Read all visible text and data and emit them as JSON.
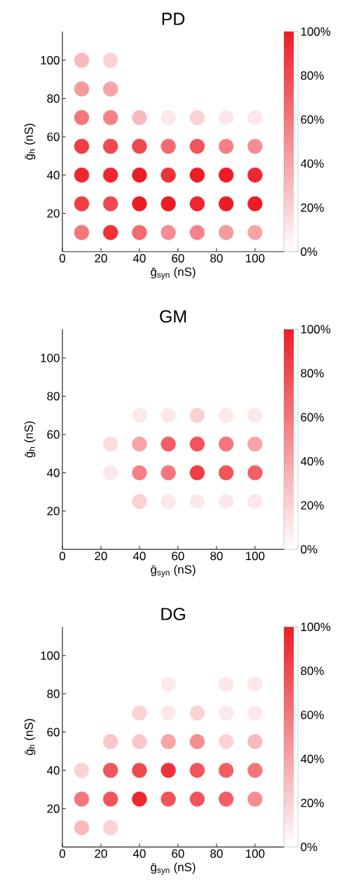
{
  "chart_data": [
    {
      "type": "scatter",
      "title": "PD",
      "xlabel": "ḡ$_{syn}$ (nS)",
      "ylabel": "ḡ$_{h}$ (nS)",
      "marker": "circle",
      "x": [
        10,
        25,
        10,
        25,
        10,
        25,
        40,
        55,
        70,
        85,
        100,
        10,
        25,
        40,
        55,
        70,
        85,
        100,
        10,
        25,
        40,
        55,
        70,
        85,
        100,
        10,
        25,
        40,
        55,
        70,
        85,
        100,
        10,
        25,
        40,
        55,
        70,
        85,
        100
      ],
      "values": [
        100,
        100,
        85,
        85,
        70,
        70,
        70,
        70,
        70,
        70,
        70,
        55,
        55,
        55,
        55,
        55,
        55,
        55,
        40,
        40,
        40,
        40,
        40,
        40,
        40,
        25,
        25,
        25,
        25,
        25,
        25,
        25,
        10,
        10,
        10,
        10,
        10,
        10,
        10
      ],
      "cvalues": [
        30,
        20,
        45,
        40,
        60,
        55,
        30,
        10,
        20,
        10,
        10,
        85,
        80,
        80,
        65,
        75,
        55,
        50,
        95,
        95,
        100,
        90,
        100,
        100,
        95,
        85,
        80,
        100,
        100,
        95,
        100,
        100,
        60,
        90,
        65,
        50,
        55,
        45,
        40
      ],
      "xlim": [
        0,
        115
      ],
      "ylim": [
        0,
        115
      ],
      "xticks": [
        0,
        20,
        40,
        60,
        80,
        100
      ],
      "yticks": [
        20,
        40,
        60,
        80,
        100
      ],
      "clim": [
        0,
        100
      ],
      "cticks": [
        {
          "value": 0,
          "label": "0%"
        },
        {
          "value": 20,
          "label": "20%"
        },
        {
          "value": 40,
          "label": "40%"
        },
        {
          "value": 60,
          "label": "60%"
        },
        {
          "value": 80,
          "label": "80%"
        },
        {
          "value": 100,
          "label": "100%"
        }
      ]
    },
    {
      "type": "scatter",
      "title": "GM",
      "xlabel": "ḡ$_{syn}$ (nS)",
      "ylabel": "ḡ$_{h}$ (nS)",
      "marker": "circle",
      "x": [
        40,
        55,
        70,
        85,
        100,
        25,
        40,
        55,
        70,
        85,
        100,
        25,
        40,
        55,
        70,
        85,
        100,
        40,
        55,
        70,
        85,
        100
      ],
      "values": [
        70,
        70,
        70,
        70,
        70,
        55,
        55,
        55,
        55,
        55,
        55,
        40,
        40,
        40,
        40,
        40,
        40,
        25,
        25,
        25,
        25,
        25
      ],
      "cvalues": [
        10,
        10,
        20,
        10,
        10,
        15,
        40,
        70,
        75,
        60,
        40,
        10,
        55,
        60,
        85,
        75,
        70,
        20,
        10,
        10,
        10,
        10
      ],
      "xlim": [
        0,
        115
      ],
      "ylim": [
        0,
        115
      ],
      "xticks": [
        0,
        20,
        40,
        60,
        80,
        100
      ],
      "yticks": [
        20,
        40,
        60,
        80,
        100
      ],
      "clim": [
        0,
        100
      ],
      "cticks": [
        {
          "value": 0,
          "label": "0%"
        },
        {
          "value": 20,
          "label": "20%"
        },
        {
          "value": 40,
          "label": "40%"
        },
        {
          "value": 60,
          "label": "60%"
        },
        {
          "value": 80,
          "label": "80%"
        },
        {
          "value": 100,
          "label": "100%"
        }
      ]
    },
    {
      "type": "scatter",
      "title": "DG",
      "xlabel": "ḡ$_{syn}$ (nS)",
      "ylabel": "ḡ$_{h}$ (nS)",
      "marker": "circle",
      "x": [
        55,
        85,
        100,
        40,
        55,
        70,
        85,
        100,
        25,
        40,
        55,
        70,
        85,
        100,
        10,
        25,
        40,
        55,
        70,
        85,
        100,
        10,
        25,
        40,
        55,
        70,
        85,
        100,
        10,
        25
      ],
      "values": [
        85,
        85,
        85,
        70,
        70,
        70,
        70,
        70,
        55,
        55,
        55,
        55,
        55,
        55,
        40,
        40,
        40,
        40,
        40,
        40,
        40,
        25,
        25,
        25,
        25,
        25,
        25,
        25,
        10,
        10
      ],
      "cvalues": [
        10,
        10,
        10,
        20,
        10,
        20,
        10,
        10,
        25,
        25,
        40,
        50,
        20,
        30,
        20,
        75,
        80,
        90,
        75,
        70,
        60,
        60,
        75,
        95,
        75,
        75,
        70,
        50,
        30,
        20
      ],
      "xlim": [
        0,
        115
      ],
      "ylim": [
        0,
        115
      ],
      "xticks": [
        0,
        20,
        40,
        60,
        80,
        100
      ],
      "yticks": [
        20,
        40,
        60,
        80,
        100
      ],
      "clim": [
        0,
        100
      ],
      "cticks": [
        {
          "value": 0,
          "label": "0%"
        },
        {
          "value": 20,
          "label": "20%"
        },
        {
          "value": 40,
          "label": "40%"
        },
        {
          "value": 60,
          "label": "60%"
        },
        {
          "value": 80,
          "label": "80%"
        },
        {
          "value": 100,
          "label": "100%"
        }
      ]
    }
  ]
}
